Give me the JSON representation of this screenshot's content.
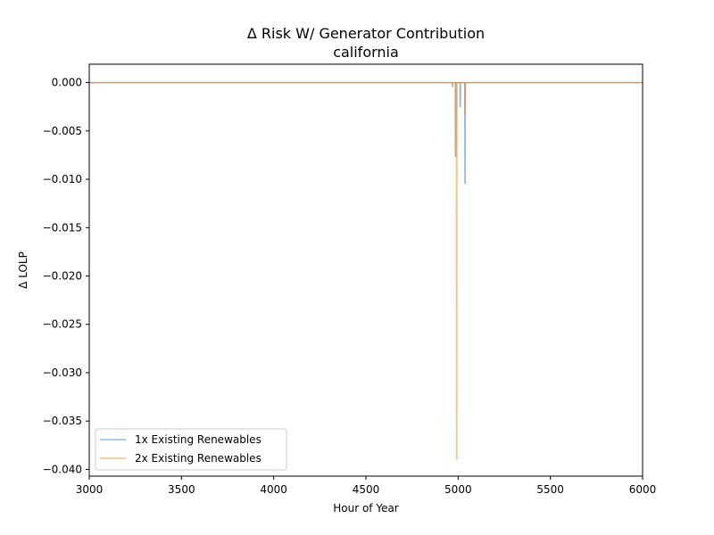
{
  "chart_data": {
    "type": "line",
    "title": "Δ Risk W/ Generator Contribution",
    "subtitle": "california",
    "xlabel": "Hour of Year",
    "ylabel": "Δ LOLP",
    "xlim": [
      3000,
      6000
    ],
    "ylim": [
      -0.0407,
      0.0019
    ],
    "xticks": [
      "3000",
      "3500",
      "4000",
      "4500",
      "5000",
      "5500",
      "6000"
    ],
    "yticks": [
      "0.000",
      "−0.005",
      "−0.010",
      "−0.015",
      "−0.020",
      "−0.025",
      "−0.030",
      "−0.035",
      "−0.040"
    ],
    "grid": false,
    "legend_position": "lower-left",
    "series": [
      {
        "name": "1x Existing Renewables",
        "color": "#1f77b4",
        "x": [
          3000,
          4968,
          4969,
          4970,
          4971,
          4985,
          4986,
          4987,
          4988,
          5010,
          5011,
          5012,
          5013,
          5036,
          5037,
          5038,
          5039,
          6000
        ],
        "y": [
          0,
          0,
          -0.0004,
          -0.0004,
          0,
          0,
          -0.0076,
          -0.0076,
          0,
          0,
          -0.0025,
          -0.0025,
          0,
          0,
          -0.0104,
          -0.0104,
          0,
          0
        ]
      },
      {
        "name": "2x Existing Renewables",
        "color": "#ff7f0e",
        "x": [
          3000,
          4985,
          4986,
          4987,
          4988,
          4991,
          4992,
          4993,
          4994,
          5036,
          5037,
          5038,
          5039,
          6000
        ],
        "y": [
          0,
          0,
          -0.0076,
          -0.0076,
          0,
          0,
          -0.0389,
          -0.0389,
          0,
          0,
          -0.0032,
          -0.0032,
          0,
          0
        ]
      }
    ]
  }
}
